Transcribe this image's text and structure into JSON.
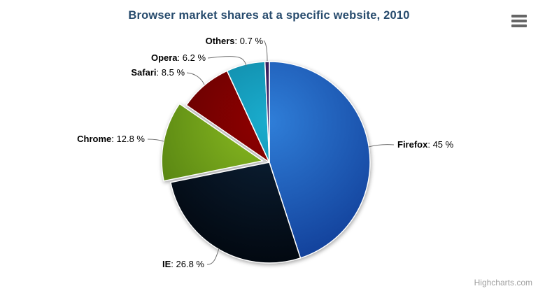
{
  "chart": {
    "title": "Browser market shares at a specific website, 2010",
    "title_color": "#274b6d",
    "background_color": "#ffffff"
  },
  "chart_data": {
    "type": "pie",
    "title": "Browser market shares at a specific website, 2010",
    "legend": "none",
    "start_angle_deg": 0,
    "direction": "clockwise",
    "label_format": "{name}: {value} %",
    "data_label_color": "#000000",
    "connector_color": "#707070",
    "slice_border_color": "#ffffff",
    "points": [
      {
        "name": "Firefox",
        "value": 45,
        "label_text": "Firefox: 45 %",
        "color": "#2f7ed8",
        "color_dark": "#12409a",
        "sliced": false
      },
      {
        "name": "IE",
        "value": 26.8,
        "label_text": "IE: 26.8 %",
        "color": "#0d233a",
        "color_dark": "#020810",
        "sliced": false
      },
      {
        "name": "Chrome",
        "value": 12.8,
        "label_text": "Chrome: 12.8 %",
        "color": "#8bbc21",
        "color_dark": "#4e7a10",
        "sliced": true
      },
      {
        "name": "Safari",
        "value": 8.5,
        "label_text": "Safari: 8.5 %",
        "color": "#910000",
        "color_dark": "#570202",
        "sliced": false
      },
      {
        "name": "Opera",
        "value": 6.2,
        "label_text": "Opera: 6.2 %",
        "color": "#1aadce",
        "color_dark": "#0b7490",
        "sliced": false
      },
      {
        "name": "Others",
        "value": 0.7,
        "label_text": "Others: 0.7 %",
        "color": "#492970",
        "color_dark": "#1d1040",
        "sliced": false
      }
    ]
  },
  "context_menu": {
    "icon": "hamburger-icon",
    "icon_color": "#666666"
  },
  "credits": {
    "label": "Highcharts.com",
    "color": "#a0a0a0"
  }
}
